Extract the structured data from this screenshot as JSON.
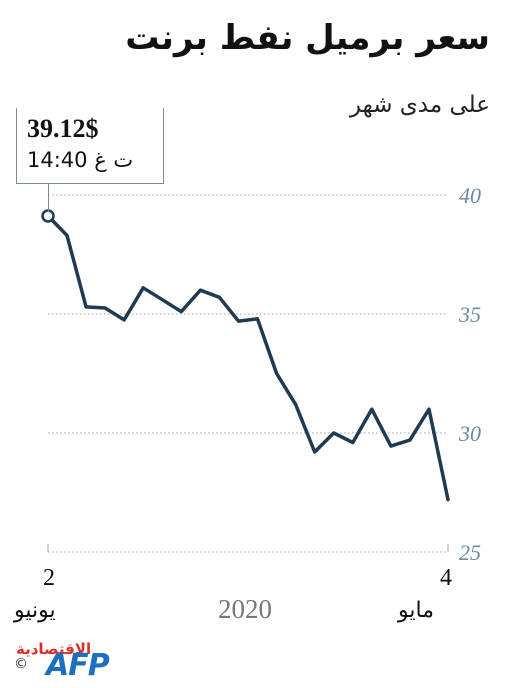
{
  "header": {
    "title": "سعر برميل نفط برنت",
    "subtitle": "على مدى شهر"
  },
  "callout": {
    "price": "39.12$",
    "time": "14:40 ت غ"
  },
  "x_axis": {
    "start_day": "2",
    "start_month": "يونيو",
    "end_day": "4",
    "end_month": "مايو",
    "year": "2020"
  },
  "logo": {
    "agency": "AFP",
    "partner": "الاقتصادية",
    "copyright": "©"
  },
  "colors": {
    "line": "#1f3a52",
    "grid": "#9aa5ae",
    "tick": "#6b8aa3"
  },
  "chart_data": {
    "type": "line",
    "title": "سعر برميل نفط برنت",
    "subtitle": "على مدى شهر",
    "xlabel": "",
    "ylabel": "",
    "ylim": [
      25,
      40
    ],
    "yticks": [
      "40",
      "35",
      "30",
      "25"
    ],
    "grid": true,
    "series": [
      {
        "values": [
          39.12,
          38.3,
          35.3,
          35.25,
          34.75,
          36.1,
          35.6,
          35.1,
          36.0,
          35.7,
          34.7,
          34.8,
          32.5,
          31.2,
          29.2,
          30.0,
          29.6,
          31.0,
          29.45,
          29.7,
          31.0,
          27.2
        ]
      }
    ]
  }
}
